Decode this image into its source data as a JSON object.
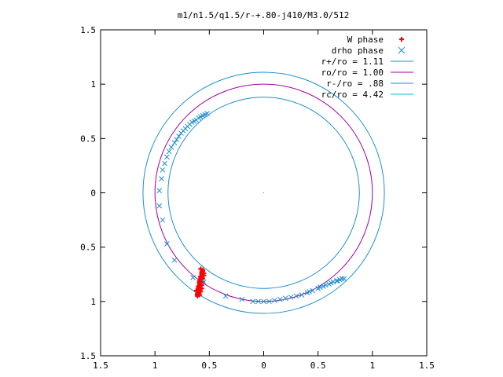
{
  "chart_data": {
    "type": "scatter",
    "title": "m1/n1.5/q1.5/r-+.80-j410/M3.0/512",
    "xlabel": "",
    "ylabel": "",
    "xlim": [
      -1.5,
      1.5
    ],
    "ylim": [
      -1.5,
      1.5
    ],
    "x_ticks": [
      {
        "value": -1.5,
        "label": "1.5"
      },
      {
        "value": -1.0,
        "label": "1"
      },
      {
        "value": -0.5,
        "label": "0.5"
      },
      {
        "value": 0,
        "label": "0"
      },
      {
        "value": 0.5,
        "label": "0.5"
      },
      {
        "value": 1.0,
        "label": "1"
      },
      {
        "value": 1.5,
        "label": "1.5"
      }
    ],
    "y_ticks": [
      {
        "value": 1.5,
        "label": "1.5"
      },
      {
        "value": 1.0,
        "label": "1"
      },
      {
        "value": 0.5,
        "label": "0.5"
      },
      {
        "value": 0,
        "label": "0"
      },
      {
        "value": -0.5,
        "label": "0.5"
      },
      {
        "value": -1.0,
        "label": "1"
      },
      {
        "value": -1.5,
        "label": "1.5"
      }
    ],
    "grid": false,
    "legend_position": "top-right",
    "circles": [
      {
        "name": "r+/ro = 1.11",
        "radius": 1.11,
        "color": "#1f8fcf"
      },
      {
        "name": "ro/ro = 1.00",
        "radius": 1.0,
        "color": "#a000a0"
      },
      {
        "name": "r-/ro = .88",
        "radius": 0.88,
        "color": "#1f8fcf"
      },
      {
        "name": "rc/ro = 4.42",
        "radius": 4.42,
        "color": "#00c0d0"
      }
    ],
    "series": [
      {
        "name": "W phase",
        "marker": "plus",
        "color": "#ff0000",
        "points": [
          [
            -0.56,
            -0.71
          ],
          [
            -0.56,
            -0.72
          ],
          [
            -0.57,
            -0.73
          ],
          [
            -0.57,
            -0.74
          ],
          [
            -0.57,
            -0.75
          ],
          [
            -0.57,
            -0.76
          ],
          [
            -0.58,
            -0.77
          ],
          [
            -0.58,
            -0.78
          ],
          [
            -0.58,
            -0.79
          ],
          [
            -0.58,
            -0.8
          ],
          [
            -0.59,
            -0.81
          ],
          [
            -0.59,
            -0.82
          ],
          [
            -0.59,
            -0.83
          ],
          [
            -0.59,
            -0.84
          ],
          [
            -0.59,
            -0.85
          ],
          [
            -0.6,
            -0.86
          ],
          [
            -0.6,
            -0.87
          ],
          [
            -0.6,
            -0.88
          ],
          [
            -0.6,
            -0.89
          ],
          [
            -0.6,
            -0.9
          ],
          [
            -0.6,
            -0.91
          ],
          [
            -0.6,
            -0.92
          ],
          [
            -0.61,
            -0.93
          ],
          [
            -0.61,
            -0.94
          ],
          [
            -0.61,
            -0.95
          ],
          [
            -0.55,
            -0.74
          ],
          [
            -0.55,
            -0.76
          ],
          [
            -0.56,
            -0.79
          ],
          [
            -0.56,
            -0.82
          ],
          [
            -0.57,
            -0.85
          ],
          [
            -0.57,
            -0.88
          ],
          [
            -0.58,
            -0.91
          ],
          [
            -0.59,
            -0.94
          ],
          [
            -0.58,
            -0.7
          ],
          [
            -0.62,
            -0.9
          ]
        ]
      },
      {
        "name": "drho phase",
        "marker": "x",
        "color": "#1f8fcf",
        "points": [
          [
            -0.52,
            0.73
          ],
          [
            -0.54,
            0.72
          ],
          [
            -0.56,
            0.71
          ],
          [
            -0.58,
            0.7
          ],
          [
            -0.6,
            0.69
          ],
          [
            -0.62,
            0.67
          ],
          [
            -0.64,
            0.66
          ],
          [
            -0.66,
            0.65
          ],
          [
            -0.68,
            0.63
          ],
          [
            -0.7,
            0.61
          ],
          [
            -0.72,
            0.59
          ],
          [
            -0.74,
            0.57
          ],
          [
            -0.76,
            0.55
          ],
          [
            -0.78,
            0.52
          ],
          [
            -0.8,
            0.49
          ],
          [
            -0.82,
            0.46
          ],
          [
            -0.85,
            0.42
          ],
          [
            -0.87,
            0.38
          ],
          [
            -0.89,
            0.33
          ],
          [
            -0.91,
            0.27
          ],
          [
            -0.93,
            0.21
          ],
          [
            -0.94,
            0.13
          ],
          [
            -0.96,
            0.02
          ],
          [
            -0.96,
            -0.12
          ],
          [
            -0.93,
            -0.25
          ],
          [
            -0.89,
            -0.47
          ],
          [
            -0.82,
            -0.62
          ],
          [
            -0.65,
            -0.78
          ],
          [
            -0.55,
            -0.82
          ],
          [
            -0.35,
            -0.95
          ],
          [
            -0.2,
            -0.98
          ],
          [
            -0.1,
            -1.0
          ],
          [
            -0.05,
            -1.0
          ],
          [
            0.0,
            -1.0
          ],
          [
            0.05,
            -1.0
          ],
          [
            0.1,
            -0.99
          ],
          [
            0.15,
            -0.98
          ],
          [
            0.2,
            -0.97
          ],
          [
            0.25,
            -0.96
          ],
          [
            0.3,
            -0.95
          ],
          [
            0.35,
            -0.94
          ],
          [
            0.4,
            -0.92
          ],
          [
            0.45,
            -0.9
          ],
          [
            0.5,
            -0.88
          ],
          [
            0.55,
            -0.86
          ],
          [
            0.6,
            -0.84
          ],
          [
            0.64,
            -0.82
          ],
          [
            0.67,
            -0.81
          ],
          [
            0.7,
            -0.8
          ],
          [
            0.72,
            -0.79
          ],
          [
            0.74,
            -0.79
          ],
          [
            0.52,
            -0.87
          ],
          [
            0.57,
            -0.85
          ],
          [
            0.62,
            -0.83
          ],
          [
            0.68,
            -0.81
          ],
          [
            0.42,
            -0.91
          ]
        ]
      }
    ]
  }
}
